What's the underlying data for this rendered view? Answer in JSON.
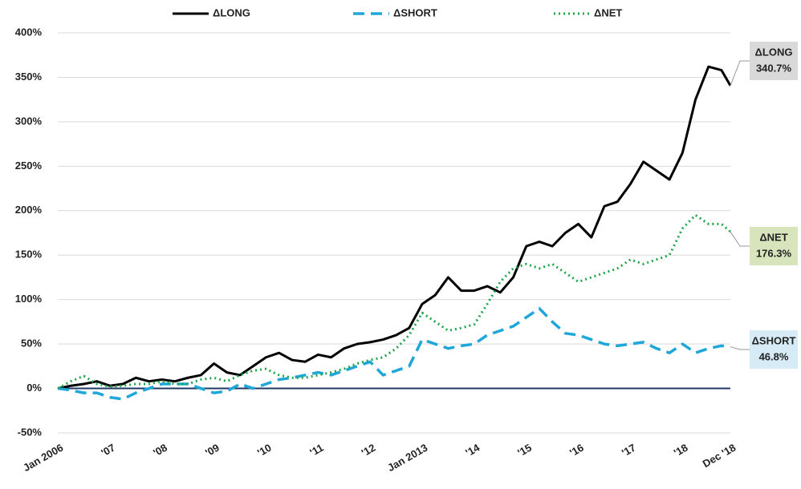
{
  "chart_data": {
    "type": "line",
    "x": [
      2006,
      2006.25,
      2006.5,
      2006.75,
      2007,
      2007.25,
      2007.5,
      2007.75,
      2008,
      2008.25,
      2008.5,
      2008.75,
      2009,
      2009.25,
      2009.5,
      2009.75,
      2010,
      2010.25,
      2010.5,
      2010.75,
      2011,
      2011.25,
      2011.5,
      2011.75,
      2012,
      2012.25,
      2012.5,
      2012.75,
      2013,
      2013.25,
      2013.5,
      2013.75,
      2014,
      2014.25,
      2014.5,
      2014.75,
      2015,
      2015.25,
      2015.5,
      2015.75,
      2016,
      2016.25,
      2016.5,
      2016.75,
      2017,
      2017.25,
      2017.5,
      2017.75,
      2018,
      2018.25,
      2018.5,
      2018.75,
      2018.92
    ],
    "series": [
      {
        "name": "ΔLONG",
        "color": "#000000",
        "dash": "solid",
        "end_label": "340.7%",
        "label_color": "#d9d9d9",
        "values": [
          0,
          3,
          5,
          8,
          3,
          5,
          12,
          8,
          10,
          8,
          12,
          15,
          28,
          18,
          15,
          25,
          35,
          40,
          32,
          30,
          38,
          35,
          45,
          50,
          52,
          55,
          60,
          68,
          95,
          105,
          125,
          110,
          110,
          115,
          108,
          125,
          160,
          165,
          160,
          175,
          185,
          170,
          205,
          210,
          230,
          255,
          245,
          235,
          265,
          325,
          362,
          358,
          340.7
        ]
      },
      {
        "name": "ΔSHORT",
        "color": "#1ea7d8",
        "dash": "dashed",
        "end_label": "46.8%",
        "label_color": "#d6ebf5",
        "values": [
          0,
          -2,
          -5,
          -5,
          -10,
          -12,
          -5,
          0,
          5,
          5,
          5,
          0,
          -5,
          -3,
          5,
          0,
          5,
          10,
          12,
          15,
          18,
          15,
          20,
          25,
          30,
          15,
          20,
          25,
          55,
          50,
          45,
          48,
          50,
          60,
          65,
          70,
          80,
          90,
          75,
          62,
          60,
          55,
          50,
          48,
          50,
          52,
          45,
          40,
          50,
          40,
          45,
          48,
          46.8
        ]
      },
      {
        "name": "ΔNET",
        "color": "#1fa64a",
        "dash": "dotted",
        "end_label": "176.3%",
        "label_color": "#d8e4bc",
        "values": [
          0,
          8,
          14,
          5,
          2,
          3,
          5,
          5,
          8,
          5,
          5,
          10,
          12,
          8,
          15,
          20,
          22,
          15,
          12,
          12,
          15,
          18,
          22,
          28,
          32,
          35,
          45,
          60,
          85,
          75,
          65,
          68,
          72,
          95,
          120,
          135,
          140,
          135,
          140,
          130,
          120,
          125,
          130,
          135,
          145,
          140,
          145,
          150,
          180,
          195,
          185,
          185,
          176.3
        ]
      }
    ],
    "xlim": [
      2006,
      2018.92
    ],
    "xticks": [
      {
        "value": 2006,
        "label": "Jan 2006"
      },
      {
        "value": 2007,
        "label": "'07"
      },
      {
        "value": 2008,
        "label": "'08"
      },
      {
        "value": 2009,
        "label": "'09"
      },
      {
        "value": 2010,
        "label": "'10"
      },
      {
        "value": 2011,
        "label": "'11"
      },
      {
        "value": 2012,
        "label": "'12"
      },
      {
        "value": 2013,
        "label": "Jan 2013"
      },
      {
        "value": 2014,
        "label": "'14"
      },
      {
        "value": 2015,
        "label": "'15"
      },
      {
        "value": 2016,
        "label": "'16"
      },
      {
        "value": 2017,
        "label": "'17"
      },
      {
        "value": 2018,
        "label": "'18"
      },
      {
        "value": 2018.92,
        "label": "Dec '18"
      }
    ],
    "ylim": [
      -50,
      400
    ],
    "yticks": [
      {
        "value": -50,
        "label": "-50%"
      },
      {
        "value": 0,
        "label": "0%"
      },
      {
        "value": 50,
        "label": "50%"
      },
      {
        "value": 100,
        "label": "100%"
      },
      {
        "value": 150,
        "label": "150%"
      },
      {
        "value": 200,
        "label": "200%"
      },
      {
        "value": 250,
        "label": "250%"
      },
      {
        "value": 300,
        "label": "300%"
      },
      {
        "value": 350,
        "label": "350%"
      },
      {
        "value": 400,
        "label": "400%"
      }
    ],
    "grid": true,
    "legend": "top"
  }
}
